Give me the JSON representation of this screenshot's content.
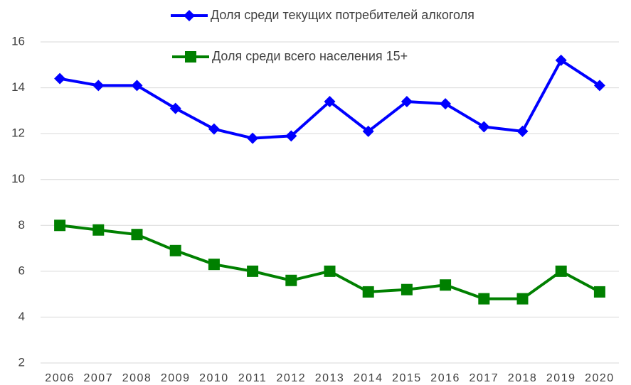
{
  "chart_data": {
    "type": "line",
    "categories": [
      "2006",
      "2007",
      "2008",
      "2009",
      "2010",
      "2011",
      "2012",
      "2013",
      "2014",
      "2015",
      "2016",
      "2017",
      "2018",
      "2019",
      "2020"
    ],
    "series": [
      {
        "name": "Доля среди текущих потребителей алкоголя",
        "color": "#0000ff",
        "marker": "diamond",
        "values": [
          14.4,
          14.1,
          14.1,
          13.1,
          12.2,
          11.8,
          11.9,
          13.4,
          12.1,
          13.4,
          13.3,
          12.3,
          12.1,
          15.2,
          14.1
        ]
      },
      {
        "name": "Доля среди всего населения 15+",
        "color": "#008000",
        "marker": "square",
        "values": [
          8.0,
          7.8,
          7.6,
          6.9,
          6.3,
          6.0,
          5.6,
          6.0,
          5.1,
          5.2,
          5.4,
          4.8,
          4.8,
          6.0,
          5.1
        ]
      }
    ],
    "ylim": [
      2,
      16
    ],
    "yticks": [
      2,
      4,
      6,
      8,
      10,
      12,
      14,
      16
    ],
    "grid": true
  }
}
